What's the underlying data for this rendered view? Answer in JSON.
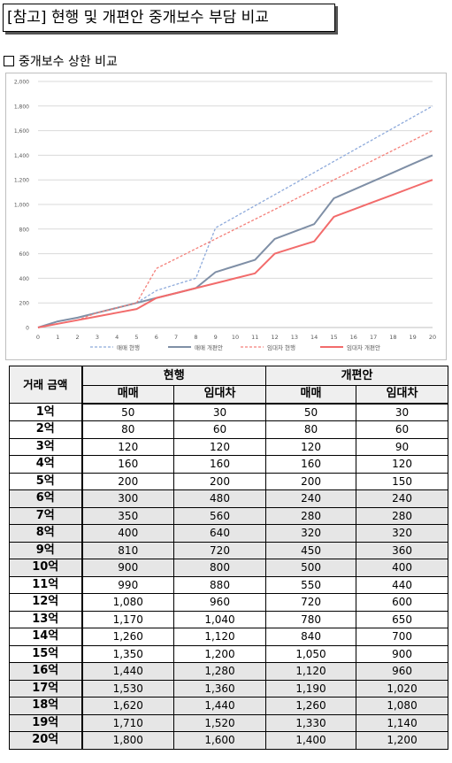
{
  "title": "[참고] 현행 및 개편안 중개보수 부담 비교",
  "section_heading": "중개보수 상한 비교",
  "chart_data": {
    "type": "line",
    "x": [
      0,
      1,
      2,
      3,
      4,
      5,
      6,
      7,
      8,
      9,
      10,
      11,
      12,
      13,
      14,
      15,
      16,
      17,
      18,
      19,
      20
    ],
    "xticks": [
      "0",
      "1",
      "2",
      "3",
      "4",
      "5",
      "6",
      "7",
      "8",
      "9",
      "10",
      "11",
      "12",
      "13",
      "14",
      "15",
      "16",
      "17",
      "18",
      "19",
      "20"
    ],
    "yticks": [
      "0",
      "200",
      "400",
      "600",
      "800",
      "1,000",
      "1,200",
      "1,400",
      "1,600",
      "1,800",
      "2,000"
    ],
    "ylim": [
      0,
      2000
    ],
    "xlim": [
      0,
      20
    ],
    "legend_position": "bottom",
    "series": [
      {
        "name": "매매 현행",
        "color": "#8eaadb",
        "dash": true,
        "values": [
          0,
          50,
          80,
          120,
          160,
          200,
          300,
          350,
          400,
          810,
          900,
          990,
          1080,
          1170,
          1260,
          1350,
          1440,
          1530,
          1620,
          1710,
          1800
        ]
      },
      {
        "name": "매매 개편안",
        "color": "#7f8fa6",
        "dash": false,
        "values": [
          0,
          50,
          80,
          120,
          160,
          200,
          240,
          280,
          320,
          450,
          500,
          550,
          720,
          780,
          840,
          1050,
          1120,
          1190,
          1260,
          1330,
          1400
        ]
      },
      {
        "name": "임대차 현행",
        "color": "#f4807a",
        "dash": true,
        "values": [
          0,
          30,
          60,
          120,
          160,
          200,
          480,
          560,
          640,
          720,
          800,
          880,
          960,
          1040,
          1120,
          1200,
          1280,
          1360,
          1440,
          1520,
          1600
        ]
      },
      {
        "name": "임대차 개편안",
        "color": "#f26b6b",
        "dash": false,
        "values": [
          0,
          30,
          60,
          90,
          120,
          150,
          240,
          280,
          320,
          360,
          400,
          440,
          600,
          650,
          700,
          900,
          960,
          1020,
          1080,
          1140,
          1200
        ]
      }
    ]
  },
  "table": {
    "header_amount": "거래 금액",
    "group_current": "현행",
    "group_reform": "개편안",
    "sub_sale": "매매",
    "sub_lease": "임대차",
    "rows": [
      {
        "amount": "1억",
        "cur_sale": "50",
        "cur_lease": "30",
        "new_sale": "50",
        "new_lease": "30",
        "shaded": false
      },
      {
        "amount": "2억",
        "cur_sale": "80",
        "cur_lease": "60",
        "new_sale": "80",
        "new_lease": "60",
        "shaded": false
      },
      {
        "amount": "3억",
        "cur_sale": "120",
        "cur_lease": "120",
        "new_sale": "120",
        "new_lease": "90",
        "shaded": false
      },
      {
        "amount": "4억",
        "cur_sale": "160",
        "cur_lease": "160",
        "new_sale": "160",
        "new_lease": "120",
        "shaded": false
      },
      {
        "amount": "5억",
        "cur_sale": "200",
        "cur_lease": "200",
        "new_sale": "200",
        "new_lease": "150",
        "shaded": false
      },
      {
        "amount": "6억",
        "cur_sale": "300",
        "cur_lease": "480",
        "new_sale": "240",
        "new_lease": "240",
        "shaded": true
      },
      {
        "amount": "7억",
        "cur_sale": "350",
        "cur_lease": "560",
        "new_sale": "280",
        "new_lease": "280",
        "shaded": true
      },
      {
        "amount": "8억",
        "cur_sale": "400",
        "cur_lease": "640",
        "new_sale": "320",
        "new_lease": "320",
        "shaded": true
      },
      {
        "amount": "9억",
        "cur_sale": "810",
        "cur_lease": "720",
        "new_sale": "450",
        "new_lease": "360",
        "shaded": true
      },
      {
        "amount": "10억",
        "cur_sale": "900",
        "cur_lease": "800",
        "new_sale": "500",
        "new_lease": "400",
        "shaded": true
      },
      {
        "amount": "11억",
        "cur_sale": "990",
        "cur_lease": "880",
        "new_sale": "550",
        "new_lease": "440",
        "shaded": false
      },
      {
        "amount": "12억",
        "cur_sale": "1,080",
        "cur_lease": "960",
        "new_sale": "720",
        "new_lease": "600",
        "shaded": false
      },
      {
        "amount": "13억",
        "cur_sale": "1,170",
        "cur_lease": "1,040",
        "new_sale": "780",
        "new_lease": "650",
        "shaded": false
      },
      {
        "amount": "14억",
        "cur_sale": "1,260",
        "cur_lease": "1,120",
        "new_sale": "840",
        "new_lease": "700",
        "shaded": false
      },
      {
        "amount": "15억",
        "cur_sale": "1,350",
        "cur_lease": "1,200",
        "new_sale": "1,050",
        "new_lease": "900",
        "shaded": false
      },
      {
        "amount": "16억",
        "cur_sale": "1,440",
        "cur_lease": "1,280",
        "new_sale": "1,120",
        "new_lease": "960",
        "shaded": true
      },
      {
        "amount": "17억",
        "cur_sale": "1,530",
        "cur_lease": "1,360",
        "new_sale": "1,190",
        "new_lease": "1,020",
        "shaded": true
      },
      {
        "amount": "18억",
        "cur_sale": "1,620",
        "cur_lease": "1,440",
        "new_sale": "1,260",
        "new_lease": "1,080",
        "shaded": true
      },
      {
        "amount": "19억",
        "cur_sale": "1,710",
        "cur_lease": "1,520",
        "new_sale": "1,330",
        "new_lease": "1,140",
        "shaded": true
      },
      {
        "amount": "20억",
        "cur_sale": "1,800",
        "cur_lease": "1,600",
        "new_sale": "1,400",
        "new_lease": "1,200",
        "shaded": true
      }
    ]
  }
}
